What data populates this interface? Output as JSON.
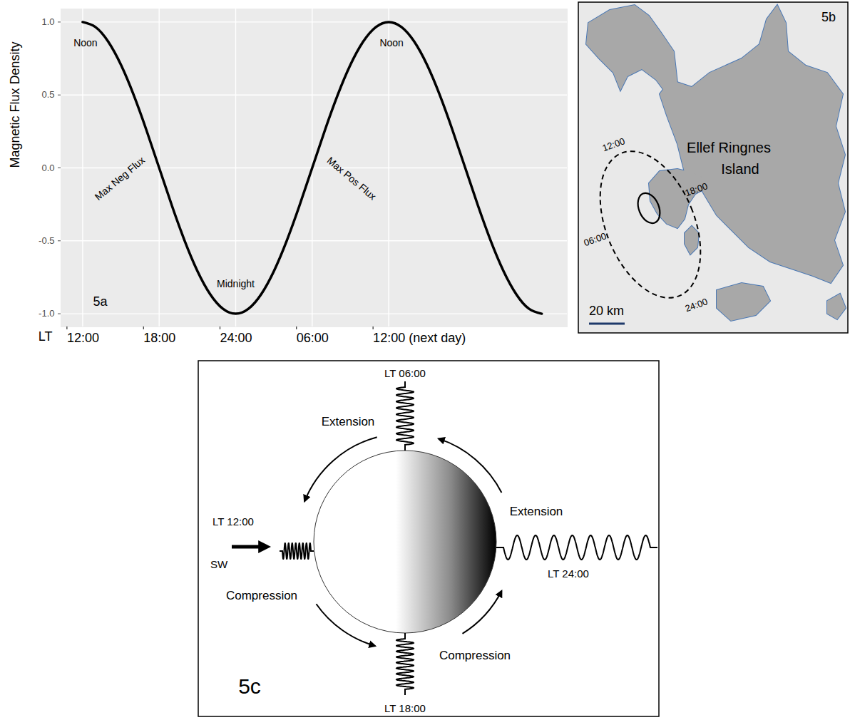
{
  "chart_data": {
    "type": "line",
    "panel_label": "5a",
    "y_label": "Magnetic Flux Density",
    "x_label": "LT",
    "x": [
      12,
      13,
      14,
      15,
      16,
      17,
      18,
      19,
      20,
      21,
      22,
      23,
      24,
      25,
      26,
      27,
      28,
      29,
      30,
      31,
      32,
      33,
      34,
      35,
      36,
      37,
      38,
      39,
      40,
      41,
      42,
      43,
      44,
      45,
      46,
      47,
      48
    ],
    "values": [
      1,
      0.966,
      0.866,
      0.707,
      0.5,
      0.259,
      0,
      -0.259,
      -0.5,
      -0.707,
      -0.866,
      -0.966,
      -1,
      -0.966,
      -0.866,
      -0.707,
      -0.5,
      -0.259,
      0,
      0.259,
      0.5,
      0.707,
      0.866,
      0.966,
      1,
      0.966,
      0.866,
      0.707,
      0.5,
      0.259,
      0,
      -0.259,
      -0.5,
      -0.707,
      -0.866,
      -0.966,
      -1
    ],
    "color": "#000000",
    "xlim": [
      10.3,
      50
    ],
    "ylim": [
      -1.09,
      1.09
    ],
    "xticks": [
      {
        "value": 12,
        "label": "12:00"
      },
      {
        "value": 18,
        "label": "18:00"
      },
      {
        "value": 24,
        "label": "24:00"
      },
      {
        "value": 30,
        "label": "06:00"
      },
      {
        "value": 36,
        "label": "12:00 (next day)"
      }
    ],
    "yticks": [
      {
        "value": -1,
        "label": "-1.0"
      },
      {
        "value": -0.5,
        "label": "-0.5"
      },
      {
        "value": 0,
        "label": "0.0"
      },
      {
        "value": 0.5,
        "label": "0.5"
      },
      {
        "value": 1,
        "label": "1.0"
      }
    ],
    "grid": true,
    "annotations": [
      {
        "text": "Noon",
        "x": 12,
        "y": 1
      },
      {
        "text": "Max Neg Flux",
        "x": 18,
        "y": 0
      },
      {
        "text": "Midnight",
        "x": 24,
        "y": -1
      },
      {
        "text": "Max Pos Flux",
        "x": 30,
        "y": 0
      },
      {
        "text": "Noon",
        "x": 36,
        "y": 1
      }
    ]
  },
  "map": {
    "panel_label": "5b",
    "island_label": "Ellef Ringnes Island",
    "time_labels": [
      "12:00",
      "18:00",
      "06:00",
      "24:00"
    ],
    "scale_bar": "20 km"
  },
  "diagram": {
    "panel_label": "5c",
    "solar_wind": "SW",
    "springs": {
      "top": "LT 06:00",
      "left": "LT 12:00",
      "right": "LT 24:00",
      "bottom": "LT 18:00"
    },
    "arrows": {
      "top_left": "Extension",
      "top_right": "Extension",
      "bottom_left": "Compression",
      "bottom_right": "Compression"
    }
  }
}
